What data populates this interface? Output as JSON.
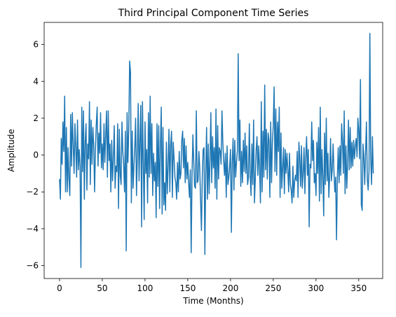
{
  "chart_data": {
    "type": "line",
    "title": "Third Principal Component Time Series",
    "xlabel": "Time (Months)",
    "ylabel": "Amplitude",
    "xlim": [
      -18,
      378
    ],
    "ylim": [
      -6.7,
      7.2
    ],
    "xticks": [
      0,
      50,
      100,
      150,
      200,
      250,
      300,
      350
    ],
    "yticks": [
      -6,
      -4,
      -2,
      0,
      2,
      4,
      6
    ],
    "grid": false,
    "legend": "none",
    "series": [
      {
        "color": "#1f77b4",
        "values": [
          -1.3,
          -2.4,
          0.9,
          -0.5,
          1.8,
          0.2,
          3.2,
          -2.0,
          1.5,
          -2.0,
          0.4,
          -1.3,
          -2.2,
          2.2,
          -0.6,
          2.3,
          0.5,
          -1.0,
          1.7,
          0.4,
          -1.2,
          1.9,
          -0.8,
          0.3,
          -0.6,
          -6.1,
          2.6,
          -0.9,
          2.4,
          -2.4,
          0.7,
          1.7,
          -1.9,
          0.6,
          -0.2,
          2.9,
          -1.6,
          1.9,
          -0.5,
          1.5,
          0.5,
          -2.0,
          0.3,
          1.7,
          2.6,
          -0.6,
          1.2,
          0.1,
          2.3,
          -0.7,
          0.6,
          -0.8,
          1.7,
          -0.4,
          1.1,
          2.4,
          -1.2,
          2.4,
          -0.3,
          0.6,
          -2.0,
          0.8,
          -1.4,
          -0.2,
          1.6,
          -1.8,
          -0.6,
          -0.9,
          1.7,
          -2.9,
          1.4,
          -1.1,
          -1.6,
          1.8,
          0.2,
          -0.5,
          -2.0,
          1.3,
          -5.2,
          2.3,
          -0.4,
          1.4,
          5.1,
          4.5,
          -2.6,
          1.3,
          -1.8,
          -0.6,
          0.4,
          2.0,
          -2.2,
          -0.1,
          2.8,
          -1.4,
          0.7,
          2.7,
          -3.9,
          2.9,
          -0.4,
          -3.5,
          1.8,
          -1.0,
          0.3,
          -2.6,
          2.3,
          -1.2,
          3.2,
          -1.0,
          1.7,
          -2.2,
          0.1,
          -1.4,
          -0.4,
          -3.4,
          1.7,
          -1.7,
          1.6,
          -2.9,
          0.5,
          2.6,
          -3.2,
          1.5,
          -2.7,
          -1.5,
          -3.0,
          0.7,
          -2.1,
          -0.6,
          1.4,
          -2.0,
          0.6,
          1.3,
          -2.3,
          0.7,
          -0.2,
          -1.2,
          -1.5,
          -2.4,
          -0.4,
          -2.0,
          0.2,
          -1.3,
          -1.0,
          0.8,
          1.3,
          -0.7,
          0.9,
          -1.5,
          0.5,
          -1.3,
          -0.4,
          -1.5,
          -2.3,
          -0.8,
          -5.3,
          -1.1,
          1.1,
          -0.4,
          -1.7,
          -1.8,
          2.4,
          -1.5,
          -1.4,
          0.2,
          -0.7,
          -2.5,
          -4.1,
          -1.1,
          0.3,
          0.4,
          -5.4,
          -1.0,
          1.5,
          -2.4,
          0.6,
          -2.1,
          -0.3,
          2.3,
          -1.5,
          1.0,
          -0.7,
          0.4,
          -1.8,
          2.5,
          -2.4,
          1.6,
          -1.3,
          0.4,
          0.2,
          -0.5,
          2.4,
          0.7,
          -0.3,
          -1.1,
          0.1,
          -2.3,
          0.5,
          -1.6,
          -1.2,
          -0.6,
          0.3,
          -4.2,
          -0.4,
          0.9,
          -1.9,
          0.8,
          -1.2,
          -0.4,
          0.2,
          5.5,
          -0.3,
          1.9,
          -1.7,
          0.2,
          -1.5,
          0.8,
          -0.9,
          1.2,
          -1.0,
          0.5,
          -1.6,
          -1.2,
          1.7,
          -1.1,
          -2.2,
          0.6,
          -1.6,
          1.9,
          -2.6,
          -1.3,
          0.3,
          1.0,
          -1.1,
          0.5,
          -0.7,
          -2.6,
          2.9,
          -2.0,
          1.3,
          -1.2,
          3.8,
          -0.8,
          1.4,
          -1.3,
          1.2,
          0.8,
          -2.3,
          1.8,
          -1.5,
          0.7,
          1.6,
          3.7,
          -0.9,
          2.5,
          -1.1,
          1.8,
          0.2,
          2.6,
          -2.3,
          1.2,
          -1.8,
          -0.7,
          0.4,
          -2.1,
          0.3,
          -1.0,
          0.1,
          -0.8,
          -2.0,
          0.1,
          -1.6,
          -1.9,
          -2.6,
          -0.6,
          -2.3,
          -1.4,
          -1.1,
          -1.4,
          0.2,
          -2.3,
          0.7,
          -0.2,
          -1.7,
          0.5,
          -1.8,
          -1.0,
          0.4,
          -2.1,
          -0.1,
          1.0,
          -1.1,
          0.3,
          -3.9,
          -0.5,
          -0.7,
          1.8,
          -0.3,
          0.8,
          -1.5,
          -1.0,
          -2.2,
          0.7,
          -1.0,
          1.5,
          -2.5,
          2.6,
          -2.1,
          0.3,
          -1.2,
          -3.3,
          1.2,
          -1.6,
          2.0,
          -1.4,
          0.1,
          -2.3,
          -1.1,
          0.9,
          -1.4,
          -0.8,
          0.6,
          -0.9,
          -2.0,
          -1.2,
          -4.6,
          -1.2,
          0.4,
          -1.5,
          0.5,
          -1.1,
          1.7,
          0.8,
          -1.0,
          2.4,
          -2.1,
          0.5,
          -1.8,
          -0.5,
          1.9,
          -0.8,
          1.5,
          -0.7,
          0.7,
          -0.6,
          0.8,
          -0.2,
          0.5,
          0.9,
          -0.1,
          2.0,
          1.3,
          -0.2,
          4.1,
          -2.7,
          -3.0,
          0.6,
          -0.1,
          -1.6,
          0.2,
          1.8,
          -1.3,
          -1.9,
          -0.9,
          6.6,
          -0.2,
          -1.6,
          1.0,
          -1.0
        ]
      }
    ]
  }
}
